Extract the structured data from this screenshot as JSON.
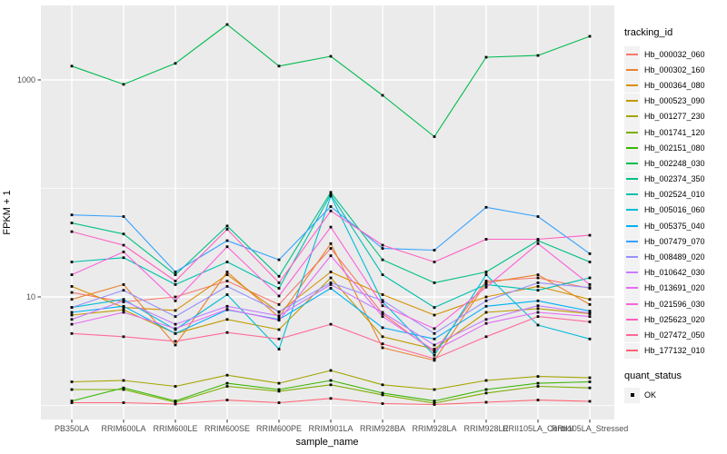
{
  "chart_data": {
    "type": "line",
    "title": "",
    "xlabel": "sample_name",
    "ylabel": "FPKM + 1",
    "y_scale": "log10",
    "ylim": [
      1,
      3500
    ],
    "y_ticks": [
      {
        "value": 10,
        "label": "10"
      },
      {
        "value": 1000,
        "label": "1000"
      }
    ],
    "y_minor_gridlines": [
      1,
      100
    ],
    "grid": true,
    "legend_position": "right",
    "legend_title": "tracking_id",
    "panel_bg": "#EBEBEB",
    "grid_color": "#FFFFFF",
    "point_color": "#000000",
    "tick_label_color": "#4D4D4D",
    "categories": [
      "PB350LA",
      "RRIM600LA",
      "RRIM600LE",
      "RRIM600SE",
      "RRIM600PE",
      "RRIM901LA",
      "RRIM928BA",
      "RRIM928LA",
      "RRIM928LE",
      "RRII105LA_Control",
      "RRII105LA_Stressed"
    ],
    "series": [
      {
        "name": "Hb_000032_060",
        "color": "#F8766D",
        "values": [
          11,
          9,
          10,
          14,
          8.5,
          28,
          7,
          3.1,
          14,
          15,
          12
        ]
      },
      {
        "name": "Hb_000302_160",
        "color": "#EA8331",
        "values": [
          9.5,
          13,
          3.6,
          17,
          6.5,
          31,
          3.4,
          2.6,
          13.5,
          16,
          8.5
        ]
      },
      {
        "name": "Hb_000364_080",
        "color": "#D89000",
        "values": [
          12.5,
          8,
          7.5,
          16,
          7.2,
          17,
          10.5,
          6.8,
          10,
          12.5,
          9.5
        ]
      },
      {
        "name": "Hb_000523_090",
        "color": "#C09B00",
        "values": [
          6.8,
          7.6,
          4.6,
          6.2,
          5,
          15,
          4.3,
          3.3,
          7.2,
          7.8,
          7
        ]
      },
      {
        "name": "Hb_001277_230",
        "color": "#A3A500",
        "values": [
          1.65,
          1.7,
          1.5,
          1.9,
          1.6,
          2.1,
          1.55,
          1.4,
          1.7,
          1.85,
          1.8
        ]
      },
      {
        "name": "Hb_001741_120",
        "color": "#7CAE00",
        "values": [
          1.4,
          1.4,
          1.07,
          1.5,
          1.35,
          1.55,
          1.25,
          1.05,
          1.3,
          1.5,
          1.45
        ]
      },
      {
        "name": "Hb_002151_080",
        "color": "#39B600",
        "values": [
          1.1,
          1.45,
          1.1,
          1.6,
          1.4,
          1.7,
          1.3,
          1.1,
          1.4,
          1.6,
          1.65
        ]
      },
      {
        "name": "Hb_002248_030",
        "color": "#00BB4E",
        "values": [
          1340,
          910,
          1420,
          3240,
          1340,
          1650,
          720,
          300,
          1620,
          1680,
          2520
        ]
      },
      {
        "name": "Hb_002374_350",
        "color": "#00C087",
        "values": [
          48,
          38,
          16,
          45,
          15.5,
          92,
          22,
          13.5,
          17,
          33,
          21
        ]
      },
      {
        "name": "Hb_002524_010",
        "color": "#00C0AF",
        "values": [
          21,
          23,
          13,
          21,
          12,
          88,
          16,
          8,
          13,
          11.5,
          15
        ]
      },
      {
        "name": "Hb_005016_060",
        "color": "#00BCD8",
        "values": [
          8,
          9.5,
          5,
          10.5,
          3.3,
          85,
          9,
          2.9,
          16,
          5.5,
          4.1
        ]
      },
      {
        "name": "Hb_005375_040",
        "color": "#00B0F6",
        "values": [
          7.2,
          8.2,
          4.6,
          7.6,
          6.2,
          12,
          5.2,
          4.1,
          8.2,
          9.2,
          7.4
        ]
      },
      {
        "name": "Hb_007479_070",
        "color": "#35A2FF",
        "values": [
          57,
          55,
          17,
          33,
          22,
          68,
          28,
          27,
          67,
          55,
          25
        ]
      },
      {
        "name": "Hb_008489_020",
        "color": "#9590FF",
        "values": [
          8,
          11.5,
          6.6,
          12.5,
          7.3,
          13.5,
          9.3,
          4.6,
          9.2,
          13.5,
          12.2
        ]
      },
      {
        "name": "Hb_010642_030",
        "color": "#C77CFF",
        "values": [
          6.2,
          9.2,
          5.6,
          8.2,
          6.7,
          13,
          7.2,
          3.6,
          6.2,
          8.3,
          7.1
        ]
      },
      {
        "name": "Hb_013691_020",
        "color": "#E76BF3",
        "values": [
          5.6,
          7.2,
          5.1,
          7.7,
          6.1,
          24,
          6.6,
          3.2,
          5.7,
          7.2,
          6.6
        ]
      },
      {
        "name": "Hb_021596_030",
        "color": "#FA62DB",
        "values": [
          16,
          26,
          9.2,
          29,
          10.2,
          44,
          8.3,
          5.1,
          12.3,
          31,
          13
        ]
      },
      {
        "name": "Hb_025623_020",
        "color": "#FF61C3",
        "values": [
          40,
          30,
          14,
          42,
          13.5,
          62,
          30,
          21,
          34,
          34,
          37
        ]
      },
      {
        "name": "Hb_027472_050",
        "color": "#FF6A98",
        "values": [
          4.6,
          4.3,
          3.9,
          4.7,
          4.1,
          5.6,
          3.7,
          2.7,
          4.3,
          6.6,
          5.9
        ]
      },
      {
        "name": "Hb_177132_010",
        "color": "#FF6576",
        "values": [
          1.06,
          1.06,
          1.03,
          1.12,
          1.06,
          1.16,
          1.04,
          1.02,
          1.07,
          1.12,
          1.09
        ]
      }
    ],
    "quant_status": {
      "title": "quant_status",
      "items": [
        {
          "label": "OK"
        }
      ]
    }
  }
}
